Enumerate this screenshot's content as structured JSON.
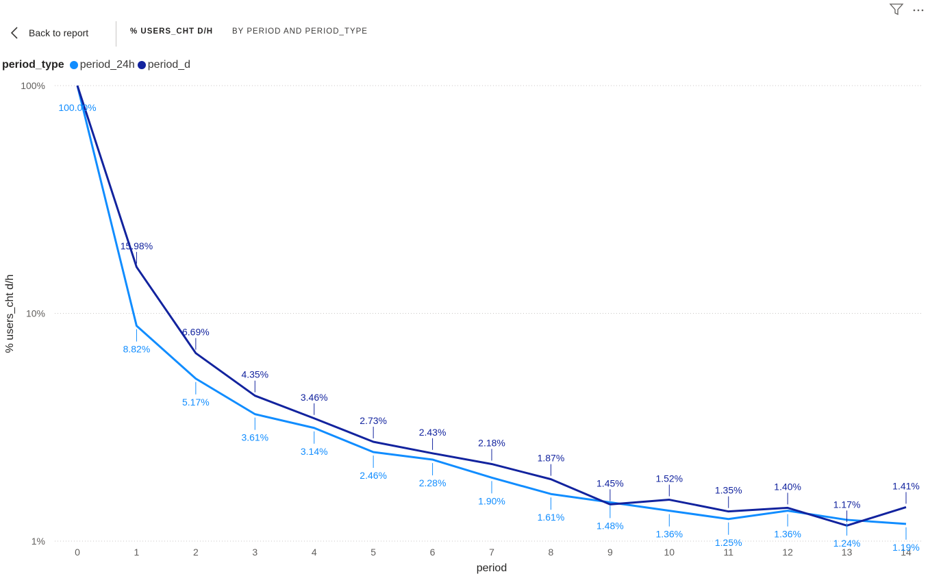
{
  "header": {
    "back_label": "Back to report",
    "title_measure": "% USERS_CHT D/H",
    "title_by": "BY PERIOD AND PERIOD_TYPE"
  },
  "icons": {
    "back": "chevron-left-icon",
    "filter": "filter-icon",
    "more": "more-options-icon"
  },
  "legend": {
    "title": "period_type",
    "items": [
      {
        "label": "period_24h",
        "color": "#118DFF"
      },
      {
        "label": "period_d",
        "color": "#12239E"
      }
    ]
  },
  "chart_data": {
    "type": "line",
    "xlabel": "period",
    "ylabel": "% users_cht d/h",
    "yscale": "log",
    "ylim": [
      1,
      100
    ],
    "ytick_labels": [
      "100%",
      "10%",
      "1%"
    ],
    "categories": [
      "0",
      "1",
      "2",
      "3",
      "4",
      "5",
      "6",
      "7",
      "8",
      "9",
      "10",
      "11",
      "12",
      "13",
      "14"
    ],
    "series": [
      {
        "name": "period_24h",
        "color": "#118DFF",
        "values": [
          100.0,
          8.82,
          5.17,
          3.61,
          3.14,
          2.46,
          2.28,
          1.9,
          1.61,
          1.48,
          1.36,
          1.25,
          1.36,
          1.24,
          1.19
        ],
        "labels": [
          "100.00%",
          "8.82%",
          "5.17%",
          "3.61%",
          "3.14%",
          "2.46%",
          "2.28%",
          "1.90%",
          "1.61%",
          "1.48%",
          "1.36%",
          "1.25%",
          "1.36%",
          "1.24%",
          "1.19%"
        ]
      },
      {
        "name": "period_d",
        "color": "#12239E",
        "values": [
          100.0,
          15.98,
          6.69,
          4.35,
          3.46,
          2.73,
          2.43,
          2.18,
          1.87,
          1.45,
          1.52,
          1.35,
          1.4,
          1.17,
          1.41
        ],
        "labels": [
          "",
          "15.98%",
          "6.69%",
          "4.35%",
          "3.46%",
          "2.73%",
          "2.43%",
          "2.18%",
          "1.87%",
          "1.45%",
          "1.52%",
          "1.35%",
          "1.40%",
          "1.17%",
          "1.41%"
        ]
      }
    ],
    "grid": true,
    "legend_position": "top-left"
  }
}
